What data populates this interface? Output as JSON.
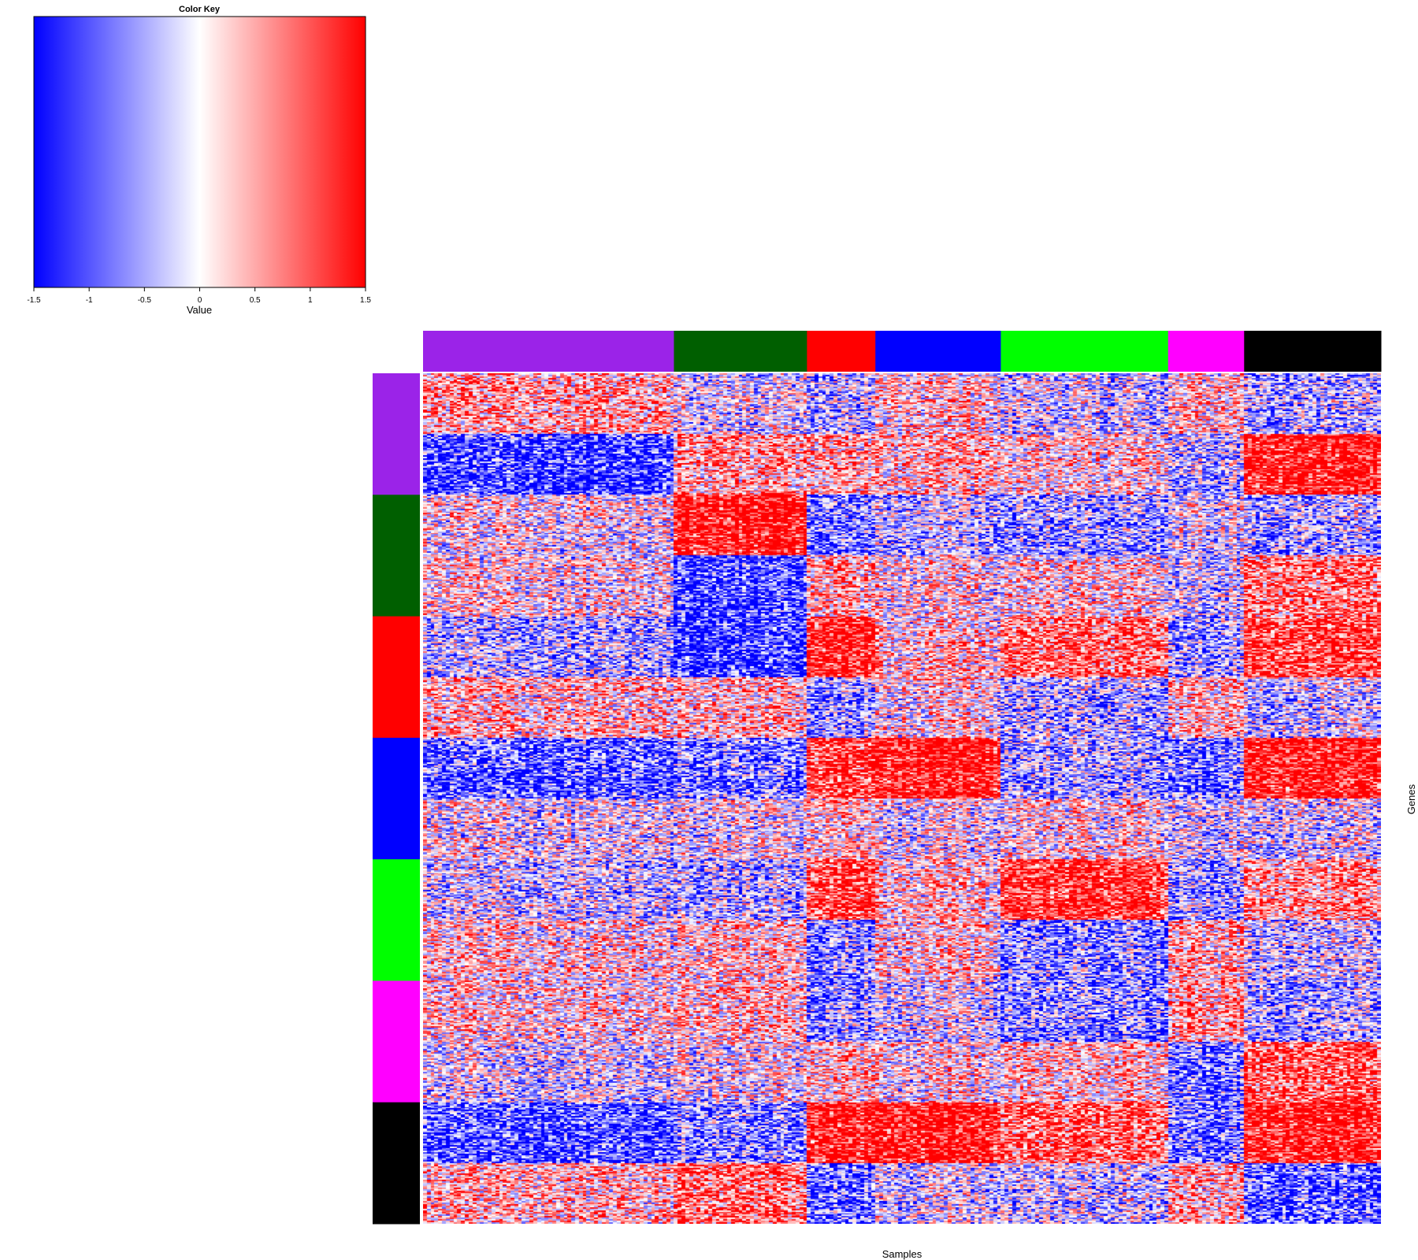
{
  "chart_data": {
    "type": "heatmap",
    "color_key": {
      "title": "Color Key",
      "xlabel": "Value",
      "range": [
        -1.5,
        1.5
      ],
      "ticks": [
        "-1.5",
        "-1",
        "-0.5",
        "0",
        "0.5",
        "1",
        "1.5"
      ],
      "tick_values": [
        -1.5,
        -1,
        -0.5,
        0,
        0.5,
        1,
        1.5
      ],
      "low_color": "#0000ff",
      "mid_color": "#ffffff",
      "high_color": "#ff0000"
    },
    "xlabel": "Samples",
    "ylabel": "Genes",
    "column_groups": [
      {
        "color": "#9b23e8",
        "n": 66
      },
      {
        "color": "#005f00",
        "n": 35
      },
      {
        "color": "#ff0000",
        "n": 18
      },
      {
        "color": "#0000ff",
        "n": 33
      },
      {
        "color": "#00ff00",
        "n": 44
      },
      {
        "color": "#ff00ff",
        "n": 20
      },
      {
        "color": "#000000",
        "n": 36
      }
    ],
    "row_groups": [
      {
        "color": "#9b23e8",
        "n": 80
      },
      {
        "color": "#005f00",
        "n": 80
      },
      {
        "color": "#ff0000",
        "n": 80
      },
      {
        "color": "#0000ff",
        "n": 80
      },
      {
        "color": "#00ff00",
        "n": 80
      },
      {
        "color": "#ff00ff",
        "n": 80
      },
      {
        "color": "#000000",
        "n": 80
      }
    ],
    "block_means": [
      [
        [
          0.5,
          -0.2,
          -0.4,
          0.2,
          -0.3,
          0.3,
          -0.5
        ],
        [
          -1.2,
          0.5,
          0.5,
          0.4,
          0.2,
          -0.4,
          1.5
        ]
      ],
      [
        [
          0.0,
          1.5,
          -0.8,
          -0.4,
          -0.6,
          -0.1,
          -0.5
        ],
        [
          0.1,
          -1.2,
          0.5,
          0.1,
          0.2,
          -0.2,
          0.8
        ]
      ],
      [
        [
          -0.5,
          -1.3,
          1.4,
          0.2,
          0.8,
          -0.5,
          1.2
        ],
        [
          0.3,
          0.3,
          -0.6,
          0.1,
          -0.5,
          0.4,
          -0.3
        ]
      ],
      [
        [
          -1.0,
          -0.8,
          1.2,
          1.5,
          -0.5,
          -0.8,
          1.5
        ],
        [
          -0.1,
          -0.1,
          0.3,
          -0.1,
          0.1,
          -0.2,
          -0.2
        ]
      ],
      [
        [
          -0.3,
          -0.5,
          1.2,
          0.2,
          1.3,
          -0.5,
          0.6
        ],
        [
          0.2,
          0.2,
          -0.6,
          0.2,
          -0.7,
          0.5,
          -0.3
        ]
      ],
      [
        [
          0.2,
          0.3,
          -0.6,
          -0.2,
          -0.7,
          0.6,
          -0.5
        ],
        [
          -0.2,
          -0.1,
          0.4,
          0.1,
          0.3,
          -0.8,
          1.0
        ]
      ],
      [
        [
          -1.1,
          -0.8,
          1.5,
          1.5,
          0.9,
          -0.8,
          1.5
        ],
        [
          0.4,
          0.8,
          -0.9,
          -0.2,
          -0.3,
          0.5,
          -1.0
        ]
      ]
    ]
  }
}
